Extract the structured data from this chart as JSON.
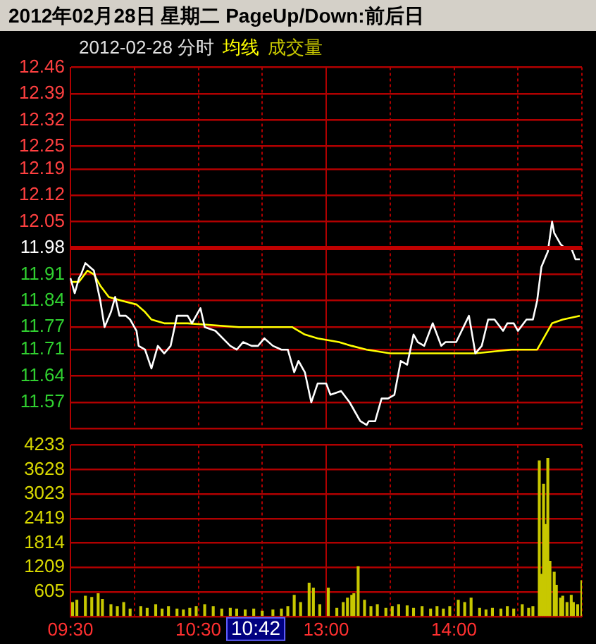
{
  "chart_data": [
    {
      "type": "line",
      "title": "2012年02月28日 星期二 PageUp/Down:前后日",
      "subtitle": "2012-02-28 分时",
      "categories": [
        null,
        null,
        null,
        null,
        null,
        null,
        null,
        null,
        null,
        null,
        null,
        null,
        null,
        null,
        null,
        null,
        null,
        null,
        null,
        null,
        null,
        null,
        null,
        null,
        null,
        null,
        null,
        null,
        null,
        null,
        null,
        null,
        null,
        null,
        null,
        null,
        null,
        null,
        null,
        null,
        null,
        null,
        null,
        null,
        null,
        null,
        null,
        null,
        null,
        null,
        null,
        null,
        null,
        null,
        null,
        null,
        null,
        null,
        null,
        null,
        null,
        null,
        null,
        null,
        null,
        null,
        null,
        null,
        null,
        null,
        null,
        null,
        null,
        null,
        null,
        null,
        null,
        null,
        null,
        null,
        null,
        null,
        null,
        null,
        null,
        null,
        null,
        null,
        null,
        null,
        null,
        null,
        null,
        null,
        null,
        null,
        null,
        null,
        null,
        null,
        null,
        null,
        null,
        null,
        null,
        null,
        null,
        null,
        null,
        null,
        null,
        null,
        null,
        null,
        null,
        null,
        null,
        null,
        null,
        null,
        null,
        null,
        null,
        null,
        null,
        null,
        null,
        null,
        null,
        null,
        null,
        null,
        null,
        null,
        null,
        null,
        null,
        null,
        null,
        null,
        null,
        null,
        null,
        null,
        null,
        null,
        null,
        null,
        null,
        null,
        null,
        null,
        null,
        null,
        null,
        null,
        null,
        null,
        null,
        null,
        null,
        null,
        null,
        null,
        null,
        null,
        null,
        null,
        null,
        null,
        null,
        null,
        null,
        null,
        null,
        null,
        null,
        null,
        null,
        null,
        null,
        null,
        null,
        null,
        null,
        null,
        null,
        null,
        null,
        null,
        null,
        null,
        null,
        null,
        null,
        null,
        null,
        null,
        null,
        null,
        null,
        null,
        null,
        null,
        null,
        null,
        null,
        null,
        null,
        null,
        null,
        null,
        null,
        null,
        null,
        null,
        null,
        null,
        null,
        null,
        null,
        null,
        null,
        null,
        null,
        null,
        null,
        null,
        null,
        null,
        null,
        null,
        null,
        null,
        null,
        null,
        null,
        null,
        null,
        null,
        null
      ],
      "tick_labels": "y",
      "ylim": [
        11.5,
        12.46
      ],
      "yticks": [
        {
          "value": 11.5,
          "label": null
        },
        11.57,
        11.64,
        11.71,
        11.77,
        11.84,
        11.91,
        11.98,
        12.05,
        12.12,
        12.19,
        12.25,
        12.32,
        12.39,
        12.46
      ],
      "grid": true,
      "legend": "top left",
      "marker": "none",
      "ref_lines": [
        {
          "axis": "y",
          "value": 11.98,
          "color": "#c00000"
        }
      ],
      "series": [
        {
          "color": "#ffffff",
          "values": [
            11.9,
            null,
            11.86,
            null,
            11.9,
            11.91,
            null,
            11.94,
            null,
            11.93,
            null,
            11.92,
            null,
            null,
            11.84,
            null,
            11.77,
            null,
            null,
            11.81,
            null,
            11.85,
            null,
            11.8,
            null,
            null,
            11.8,
            null,
            11.79,
            null,
            null,
            11.76,
            11.72,
            null,
            null,
            11.71,
            null,
            null,
            11.66,
            null,
            null,
            11.72,
            null,
            null,
            11.7,
            null,
            null,
            11.72,
            null,
            null,
            11.8,
            null,
            11.8,
            null,
            null,
            11.8,
            null,
            11.78,
            null,
            null,
            null,
            11.82,
            null,
            11.77,
            null,
            null,
            null,
            null,
            11.76,
            null,
            null,
            null,
            null,
            null,
            null,
            11.72,
            null,
            null,
            11.71,
            null,
            null,
            11.73,
            null,
            null,
            null,
            11.72,
            null,
            null,
            11.72,
            null,
            null,
            11.74,
            null,
            null,
            null,
            11.72,
            null,
            null,
            null,
            11.71,
            null,
            null,
            11.71,
            null,
            null,
            11.65,
            null,
            11.68,
            null,
            null,
            11.65,
            null,
            null,
            11.57,
            null,
            null,
            11.62,
            null,
            null,
            null,
            11.62,
            null,
            11.59,
            null,
            null,
            null,
            null,
            11.6,
            null,
            null,
            null,
            11.57,
            null,
            null,
            null,
            null,
            11.52,
            null,
            null,
            11.51,
            11.52,
            null,
            null,
            11.52,
            null,
            null,
            11.58,
            null,
            null,
            11.58,
            null,
            null,
            11.59,
            null,
            null,
            11.68,
            null,
            null,
            11.67,
            null,
            null,
            11.75,
            null,
            11.73,
            null,
            null,
            11.72,
            null,
            null,
            null,
            11.78,
            null,
            null,
            null,
            11.72,
            null,
            11.73,
            null,
            null,
            null,
            null,
            11.73,
            null,
            null,
            null,
            null,
            null,
            11.8,
            null,
            null,
            11.7,
            null,
            null,
            11.72,
            null,
            null,
            11.79,
            null,
            null,
            11.79,
            null,
            null,
            null,
            11.76,
            null,
            11.78,
            null,
            null,
            11.78,
            null,
            11.76,
            null,
            null,
            null,
            11.79,
            null,
            null,
            11.79,
            null,
            11.84,
            null,
            11.93,
            null,
            null,
            11.97,
            null,
            12.05,
            12.02,
            null,
            null,
            11.99,
            null,
            11.98,
            null,
            null,
            11.98,
            null,
            11.95,
            null,
            11.95,
            null
          ]
        },
        {
          "name": "均线",
          "color": "#ffff00",
          "values": [
            11.89,
            null,
            null,
            null,
            11.89,
            null,
            null,
            null,
            11.92,
            null,
            null,
            11.91,
            null,
            null,
            11.88,
            null,
            null,
            null,
            11.85,
            null,
            null,
            null,
            null,
            null,
            11.84,
            null,
            null,
            null,
            null,
            null,
            null,
            11.83,
            null,
            null,
            null,
            11.81,
            null,
            null,
            11.79,
            null,
            null,
            null,
            null,
            null,
            11.78,
            null,
            null,
            null,
            null,
            null,
            null,
            null,
            null,
            null,
            null,
            11.78,
            null,
            null,
            null,
            null,
            null,
            null,
            null,
            null,
            null,
            null,
            null,
            null,
            null,
            null,
            null,
            null,
            null,
            null,
            null,
            null,
            null,
            null,
            null,
            11.77,
            null,
            null,
            null,
            null,
            null,
            null,
            null,
            null,
            null,
            null,
            11.77,
            null,
            null,
            null,
            null,
            null,
            null,
            null,
            null,
            null,
            null,
            null,
            null,
            null,
            11.77,
            null,
            null,
            null,
            null,
            null,
            11.75,
            null,
            null,
            null,
            null,
            null,
            11.74,
            null,
            null,
            null,
            null,
            null,
            null,
            null,
            null,
            null,
            11.73,
            null,
            null,
            null,
            null,
            null,
            11.72,
            null,
            null,
            null,
            null,
            null,
            null,
            11.71,
            null,
            null,
            null,
            null,
            null,
            null,
            null,
            null,
            null,
            null,
            11.7,
            null,
            null,
            null,
            null,
            null,
            null,
            null,
            null,
            null,
            null,
            null,
            null,
            null,
            null,
            null,
            null,
            null,
            null,
            null,
            null,
            null,
            null,
            null,
            null,
            null,
            null,
            null,
            null,
            null,
            null,
            11.7,
            null,
            null,
            null,
            null,
            null,
            null,
            null,
            null,
            11.7,
            null,
            null,
            null,
            null,
            null,
            null,
            null,
            null,
            null,
            null,
            null,
            null,
            null,
            null,
            null,
            null,
            11.71,
            null,
            null,
            null,
            null,
            null,
            null,
            null,
            null,
            null,
            null,
            null,
            11.71,
            null,
            null,
            null,
            11.75,
            null,
            null,
            11.78,
            null,
            null,
            null,
            null,
            11.79,
            null,
            null,
            null,
            null,
            null,
            null,
            null,
            11.8,
            null
          ]
        }
      ]
    },
    {
      "type": "bar",
      "categories": [
        "09:30",
        null,
        null,
        null,
        null,
        null,
        null,
        null,
        null,
        null,
        null,
        null,
        null,
        null,
        null,
        null,
        null,
        null,
        null,
        null,
        null,
        null,
        null,
        null,
        null,
        null,
        null,
        null,
        null,
        null,
        null,
        null,
        null,
        null,
        null,
        null,
        null,
        null,
        null,
        null,
        null,
        null,
        null,
        null,
        null,
        null,
        null,
        null,
        null,
        null,
        null,
        null,
        null,
        null,
        null,
        null,
        null,
        null,
        null,
        null,
        "10:30",
        null,
        null,
        null,
        null,
        null,
        null,
        null,
        null,
        null,
        null,
        null,
        null,
        null,
        null,
        null,
        null,
        null,
        null,
        null,
        null,
        null,
        null,
        null,
        null,
        null,
        null,
        null,
        null,
        null,
        null,
        null,
        null,
        null,
        null,
        null,
        null,
        null,
        null,
        null,
        null,
        null,
        null,
        null,
        null,
        null,
        null,
        null,
        null,
        null,
        null,
        null,
        null,
        null,
        null,
        null,
        null,
        null,
        null,
        null,
        "13:00",
        null,
        null,
        null,
        null,
        null,
        null,
        null,
        null,
        null,
        null,
        null,
        null,
        null,
        null,
        null,
        null,
        null,
        null,
        null,
        null,
        null,
        null,
        null,
        null,
        null,
        null,
        null,
        null,
        null,
        null,
        null,
        null,
        null,
        null,
        null,
        null,
        null,
        null,
        null,
        null,
        null,
        null,
        null,
        null,
        null,
        null,
        null,
        null,
        null,
        null,
        null,
        null,
        null,
        null,
        null,
        null,
        null,
        null,
        null,
        "14:00",
        null,
        null,
        null,
        null,
        null,
        null,
        null,
        null,
        null,
        null,
        null,
        null,
        null,
        null,
        null,
        null,
        null,
        null,
        null,
        null,
        null,
        null,
        null,
        null,
        null,
        null,
        null,
        null,
        null,
        null,
        null,
        null,
        null,
        null,
        null,
        null,
        null,
        null,
        null,
        null,
        null,
        null,
        null,
        null,
        null,
        null,
        null,
        null,
        null,
        null,
        null,
        null,
        null,
        null,
        null,
        null,
        null,
        null,
        null,
        null
      ],
      "ylim": [
        0,
        4233
      ],
      "yticks": [
        {
          "value": 0,
          "label": null
        },
        605,
        1209,
        1814,
        2419,
        3023,
        3628,
        4233
      ],
      "grid": true,
      "legend": "top left",
      "annotations": [
        "10:42"
      ],
      "series": [
        {
          "name": "成交量",
          "color": "#c8c800",
          "values": [
            null,
            340,
            null,
            400,
            null,
            null,
            null,
            500,
            null,
            null,
            470,
            null,
            null,
            560,
            null,
            420,
            null,
            null,
            null,
            290,
            null,
            null,
            240,
            null,
            null,
            340,
            null,
            null,
            180,
            null,
            null,
            null,
            null,
            240,
            null,
            null,
            200,
            null,
            null,
            null,
            290,
            null,
            null,
            180,
            null,
            null,
            240,
            null,
            null,
            null,
            180,
            null,
            null,
            160,
            null,
            null,
            200,
            null,
            null,
            240,
            null,
            null,
            null,
            290,
            null,
            null,
            null,
            240,
            null,
            null,
            null,
            180,
            null,
            null,
            null,
            200,
            null,
            null,
            180,
            null,
            null,
            null,
            160,
            null,
            null,
            null,
            180,
            null,
            null,
            null,
            130,
            null,
            null,
            null,
            null,
            160,
            null,
            null,
            null,
            180,
            null,
            null,
            240,
            null,
            null,
            520,
            null,
            null,
            340,
            null,
            null,
            null,
            820,
            null,
            700,
            null,
            null,
            290,
            null,
            null,
            null,
            700,
            null,
            null,
            null,
            200,
            null,
            null,
            340,
            null,
            450,
            null,
            520,
            560,
            null,
            1230,
            null,
            null,
            400,
            null,
            null,
            240,
            null,
            null,
            290,
            null,
            null,
            null,
            200,
            null,
            null,
            240,
            null,
            null,
            290,
            null,
            null,
            null,
            260,
            null,
            null,
            200,
            null,
            null,
            null,
            240,
            null,
            null,
            null,
            180,
            null,
            null,
            240,
            null,
            null,
            180,
            null,
            null,
            240,
            null,
            null,
            null,
            400,
            null,
            null,
            340,
            null,
            null,
            450,
            null,
            null,
            null,
            200,
            null,
            null,
            160,
            null,
            null,
            200,
            null,
            null,
            null,
            180,
            null,
            null,
            240,
            null,
            null,
            180,
            null,
            null,
            null,
            290,
            null,
            null,
            200,
            null,
            240,
            null,
            null,
            3840,
            1040,
            3260,
            2270,
            3900,
            1360,
            null,
            1090,
            770,
            null,
            450,
            500,
            null,
            340,
            null,
            520,
            340,
            null,
            290,
            null,
            880
          ]
        }
      ]
    }
  ]
}
